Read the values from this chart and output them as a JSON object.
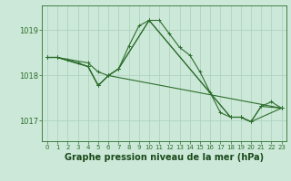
{
  "background_color": "#cce8d8",
  "line_color": "#2d6e2d",
  "grid_color": "#aacfba",
  "xlabel": "Graphe pression niveau de la mer (hPa)",
  "xlabel_fontsize": 7.0,
  "xlabel_color": "#1a4a1a",
  "tick_color": "#2d6e2d",
  "xlim": [
    -0.5,
    23.5
  ],
  "ylim": [
    1016.55,
    1019.55
  ],
  "yticks": [
    1017,
    1018,
    1019
  ],
  "xticks": [
    0,
    1,
    2,
    3,
    4,
    5,
    6,
    7,
    8,
    9,
    10,
    11,
    12,
    13,
    14,
    15,
    16,
    17,
    18,
    19,
    20,
    21,
    22,
    23
  ],
  "main_series": {
    "x": [
      0,
      1,
      2,
      3,
      4,
      5,
      6,
      7,
      8,
      9,
      10,
      11,
      12,
      13,
      14,
      15,
      16,
      17,
      18,
      19,
      20,
      21,
      22,
      23
    ],
    "y": [
      1018.4,
      1018.4,
      1018.35,
      1018.28,
      1018.2,
      1017.78,
      1018.0,
      1018.15,
      1018.65,
      1019.1,
      1019.22,
      1019.22,
      1018.92,
      1018.62,
      1018.45,
      1018.08,
      1017.62,
      1017.18,
      1017.08,
      1017.08,
      1016.98,
      1017.32,
      1017.42,
      1017.28
    ]
  },
  "line2": {
    "x": [
      0,
      1,
      4,
      5,
      6,
      7,
      10,
      18,
      19,
      20,
      21,
      23
    ],
    "y": [
      1018.4,
      1018.4,
      1018.2,
      1017.78,
      1018.0,
      1018.15,
      1019.22,
      1017.08,
      1017.08,
      1016.98,
      1017.32,
      1017.28
    ]
  },
  "line3": {
    "x": [
      0,
      1,
      4,
      5,
      6,
      7,
      10,
      18,
      19,
      20,
      23
    ],
    "y": [
      1018.4,
      1018.4,
      1018.2,
      1017.78,
      1018.0,
      1018.15,
      1019.22,
      1017.08,
      1017.08,
      1016.98,
      1017.28
    ]
  },
  "line4": {
    "x": [
      0,
      1,
      4,
      5,
      6,
      23
    ],
    "y": [
      1018.4,
      1018.4,
      1018.28,
      1018.08,
      1018.0,
      1017.28
    ]
  },
  "marker_size": 2.5,
  "line_width": 0.8
}
